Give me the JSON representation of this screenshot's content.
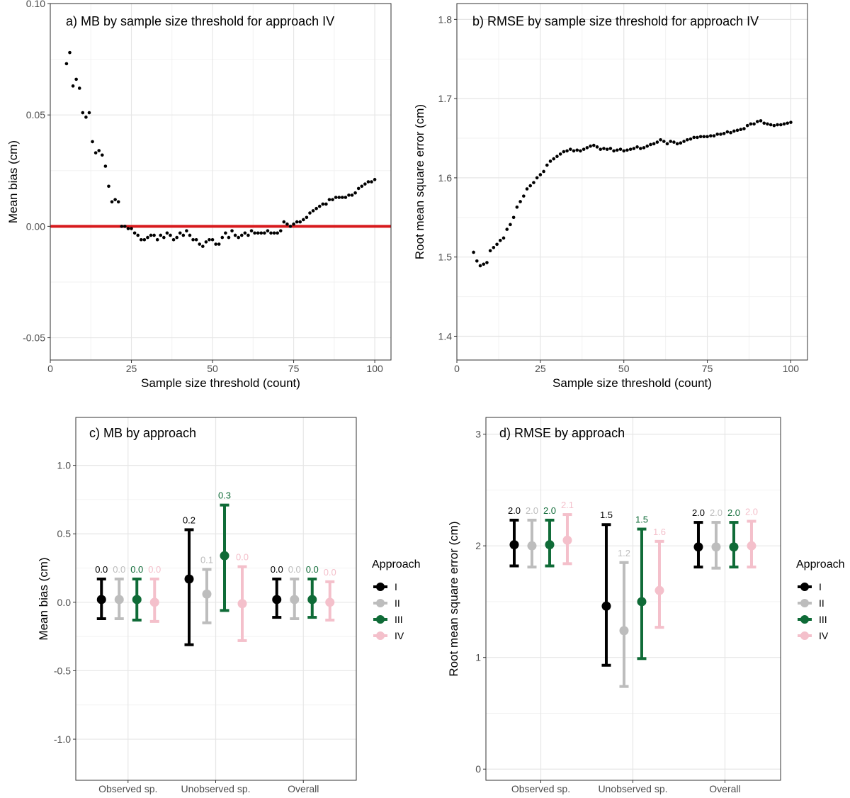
{
  "chart_data": [
    {
      "id": "a",
      "type": "scatter",
      "title": "a)  MB by sample size threshold for approach IV",
      "xlabel": "Sample size threshold (count)",
      "ylabel": "Mean bias (cm)",
      "xlim": [
        0,
        105
      ],
      "ylim": [
        -0.06,
        0.1
      ],
      "xticks": [
        0,
        25,
        50,
        75,
        100
      ],
      "xtick_labels": [
        "0",
        "25",
        "50",
        "75",
        "100"
      ],
      "yticks": [
        -0.05,
        0.0,
        0.05,
        0.1
      ],
      "ytick_labels": [
        "-0.05",
        "0.00",
        "0.05",
        "0.10"
      ],
      "reference_line": {
        "y": 0,
        "color": "#d7191c"
      },
      "x": [
        5,
        6,
        7,
        8,
        9,
        10,
        11,
        12,
        13,
        14,
        15,
        16,
        17,
        18,
        19,
        20,
        21,
        22,
        23,
        24,
        25,
        26,
        27,
        28,
        29,
        30,
        31,
        32,
        33,
        34,
        35,
        36,
        37,
        38,
        39,
        40,
        41,
        42,
        43,
        44,
        45,
        46,
        47,
        48,
        49,
        50,
        51,
        52,
        53,
        54,
        55,
        56,
        57,
        58,
        59,
        60,
        61,
        62,
        63,
        64,
        65,
        66,
        67,
        68,
        69,
        70,
        71,
        72,
        73,
        74,
        75,
        76,
        77,
        78,
        79,
        80,
        81,
        82,
        83,
        84,
        85,
        86,
        87,
        88,
        89,
        90,
        91,
        92,
        93,
        94,
        95,
        96,
        97,
        98,
        99,
        100
      ],
      "y": [
        0.073,
        0.078,
        0.063,
        0.066,
        0.062,
        0.051,
        0.049,
        0.051,
        0.038,
        0.033,
        0.034,
        0.032,
        0.027,
        0.018,
        0.011,
        0.012,
        0.011,
        0.0,
        0.0,
        -0.001,
        -0.001,
        -0.003,
        -0.004,
        -0.006,
        -0.006,
        -0.005,
        -0.004,
        -0.004,
        -0.006,
        -0.004,
        -0.005,
        -0.003,
        -0.004,
        -0.006,
        -0.005,
        -0.003,
        -0.004,
        -0.002,
        -0.004,
        -0.006,
        -0.006,
        -0.008,
        -0.009,
        -0.007,
        -0.006,
        -0.006,
        -0.008,
        -0.008,
        -0.005,
        -0.003,
        -0.005,
        -0.002,
        -0.004,
        -0.005,
        -0.004,
        -0.003,
        -0.004,
        -0.002,
        -0.003,
        -0.003,
        -0.003,
        -0.003,
        -0.002,
        -0.003,
        -0.003,
        -0.003,
        -0.002,
        0.002,
        0.001,
        0.0,
        0.001,
        0.002,
        0.002,
        0.003,
        0.004,
        0.006,
        0.007,
        0.008,
        0.009,
        0.01,
        0.01,
        0.012,
        0.012,
        0.013,
        0.013,
        0.013,
        0.013,
        0.014,
        0.014,
        0.015,
        0.017,
        0.018,
        0.019,
        0.02,
        0.02,
        0.021
      ]
    },
    {
      "id": "b",
      "type": "scatter",
      "title": "b)  RMSE by sample size threshold for approach IV",
      "xlabel": "Sample size threshold (count)",
      "ylabel": "Root mean square error (cm)",
      "xlim": [
        0,
        105
      ],
      "ylim": [
        1.37,
        1.82
      ],
      "xticks": [
        0,
        25,
        50,
        75,
        100
      ],
      "xtick_labels": [
        "0",
        "25",
        "50",
        "75",
        "100"
      ],
      "yticks": [
        1.4,
        1.5,
        1.6,
        1.7,
        1.8
      ],
      "ytick_labels": [
        "1.4",
        "1.5",
        "1.6",
        "1.7",
        "1.8"
      ],
      "x": [
        5,
        6,
        7,
        8,
        9,
        10,
        11,
        12,
        13,
        14,
        15,
        16,
        17,
        18,
        19,
        20,
        21,
        22,
        23,
        24,
        25,
        26,
        27,
        28,
        29,
        30,
        31,
        32,
        33,
        34,
        35,
        36,
        37,
        38,
        39,
        40,
        41,
        42,
        43,
        44,
        45,
        46,
        47,
        48,
        49,
        50,
        51,
        52,
        53,
        54,
        55,
        56,
        57,
        58,
        59,
        60,
        61,
        62,
        63,
        64,
        65,
        66,
        67,
        68,
        69,
        70,
        71,
        72,
        73,
        74,
        75,
        76,
        77,
        78,
        79,
        80,
        81,
        82,
        83,
        84,
        85,
        86,
        87,
        88,
        89,
        90,
        91,
        92,
        93,
        94,
        95,
        96,
        97,
        98,
        99,
        100
      ],
      "y": [
        1.506,
        1.495,
        1.489,
        1.491,
        1.493,
        1.508,
        1.512,
        1.516,
        1.521,
        1.524,
        1.535,
        1.541,
        1.55,
        1.563,
        1.57,
        1.577,
        1.586,
        1.59,
        1.594,
        1.6,
        1.604,
        1.608,
        1.616,
        1.621,
        1.624,
        1.627,
        1.63,
        1.633,
        1.634,
        1.636,
        1.634,
        1.635,
        1.634,
        1.636,
        1.638,
        1.64,
        1.641,
        1.639,
        1.636,
        1.637,
        1.636,
        1.637,
        1.634,
        1.635,
        1.636,
        1.634,
        1.635,
        1.636,
        1.637,
        1.639,
        1.637,
        1.638,
        1.64,
        1.642,
        1.643,
        1.645,
        1.648,
        1.646,
        1.643,
        1.646,
        1.645,
        1.643,
        1.644,
        1.646,
        1.648,
        1.649,
        1.651,
        1.651,
        1.652,
        1.652,
        1.652,
        1.653,
        1.653,
        1.655,
        1.655,
        1.656,
        1.658,
        1.657,
        1.659,
        1.66,
        1.661,
        1.662,
        1.666,
        1.668,
        1.668,
        1.671,
        1.672,
        1.669,
        1.668,
        1.667,
        1.666,
        1.667,
        1.667,
        1.668,
        1.669,
        1.67
      ]
    },
    {
      "id": "c",
      "type": "errorbar",
      "title": "c)  MB by approach",
      "xlabel": "",
      "ylabel": "Mean bias (cm)",
      "ylim": [
        -1.3,
        1.35
      ],
      "yticks": [
        -1.0,
        -0.5,
        0.0,
        0.5,
        1.0
      ],
      "ytick_labels": [
        "-1.0",
        "-0.5",
        "0.0",
        "0.5",
        "1.0"
      ],
      "categories": [
        "Observed sp.",
        "Unobserved sp.",
        "Overall"
      ],
      "series": [
        {
          "name": "I",
          "color": "#000000",
          "values": [
            0.02,
            0.17,
            0.02
          ],
          "lower": [
            -0.12,
            -0.31,
            -0.11
          ],
          "upper": [
            0.17,
            0.53,
            0.17
          ],
          "labels": [
            "0.0",
            "0.2",
            "0.0"
          ]
        },
        {
          "name": "II",
          "color": "#bdbdbd",
          "values": [
            0.02,
            0.06,
            0.02
          ],
          "lower": [
            -0.12,
            -0.15,
            -0.12
          ],
          "upper": [
            0.17,
            0.24,
            0.17
          ],
          "labels": [
            "0.0",
            "0.1",
            "0.0"
          ]
        },
        {
          "name": "III",
          "color": "#0f6b37",
          "values": [
            0.02,
            0.34,
            0.02
          ],
          "lower": [
            -0.13,
            -0.06,
            -0.11
          ],
          "upper": [
            0.17,
            0.71,
            0.17
          ],
          "labels": [
            "0.0",
            "0.3",
            "0.0"
          ]
        },
        {
          "name": "IV",
          "color": "#f4c0cb",
          "values": [
            0.0,
            -0.01,
            0.0
          ],
          "lower": [
            -0.14,
            -0.28,
            -0.13
          ],
          "upper": [
            0.17,
            0.26,
            0.15
          ],
          "labels": [
            "0.0",
            "0.0",
            "0.0"
          ]
        }
      ],
      "legend": {
        "title": "Approach",
        "position": "right"
      }
    },
    {
      "id": "d",
      "type": "errorbar",
      "title": "d)  RMSE by approach",
      "xlabel": "",
      "ylabel": "Root mean square error (cm)",
      "ylim": [
        -0.1,
        3.15
      ],
      "yticks": [
        0,
        1,
        2,
        3
      ],
      "ytick_labels": [
        "0",
        "1",
        "2",
        "3"
      ],
      "categories": [
        "Observed sp.",
        "Unobserved sp.",
        "Overall"
      ],
      "series": [
        {
          "name": "I",
          "color": "#000000",
          "values": [
            2.01,
            1.46,
            1.99
          ],
          "lower": [
            1.82,
            0.93,
            1.81
          ],
          "upper": [
            2.23,
            2.19,
            2.21
          ],
          "labels": [
            "2.0",
            "1.5",
            "2.0"
          ]
        },
        {
          "name": "II",
          "color": "#bdbdbd",
          "values": [
            2.0,
            1.24,
            1.99
          ],
          "lower": [
            1.81,
            0.74,
            1.8
          ],
          "upper": [
            2.23,
            1.85,
            2.21
          ],
          "labels": [
            "2.0",
            "1.2",
            "2.0"
          ]
        },
        {
          "name": "III",
          "color": "#0f6b37",
          "values": [
            2.01,
            1.5,
            1.99
          ],
          "lower": [
            1.82,
            0.99,
            1.81
          ],
          "upper": [
            2.23,
            2.15,
            2.21
          ],
          "labels": [
            "2.0",
            "1.5",
            "2.0"
          ]
        },
        {
          "name": "IV",
          "color": "#f4c0cb",
          "values": [
            2.05,
            1.6,
            2.0
          ],
          "lower": [
            1.84,
            1.27,
            1.81
          ],
          "upper": [
            2.28,
            2.04,
            2.22
          ],
          "labels": [
            "2.1",
            "1.6",
            "2.0"
          ]
        }
      ],
      "legend": {
        "title": "Approach",
        "position": "right"
      }
    }
  ]
}
